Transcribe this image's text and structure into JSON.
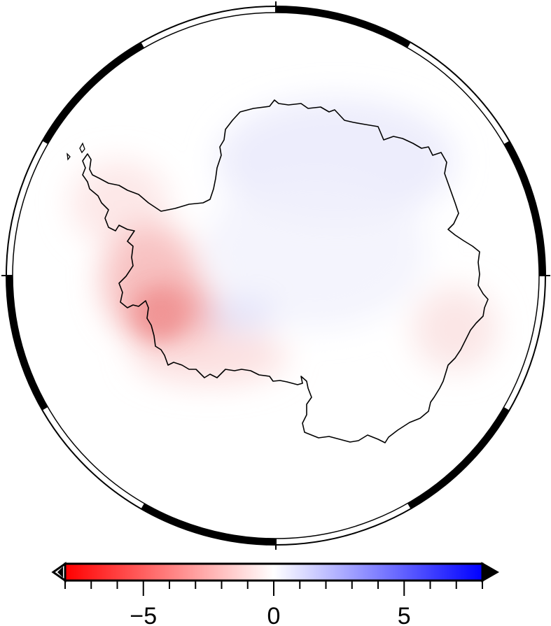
{
  "colorbar": {
    "min": -8,
    "max": 8,
    "major_tick_values": [
      -5,
      0,
      5
    ],
    "tick_labels": [
      "−5",
      "0",
      "5"
    ],
    "minor_tick_step": 1,
    "low_color": "#ff0000",
    "mid_color": "#ffffff",
    "high_color": "#0000ff",
    "extend": "both"
  },
  "colors": {
    "frame": "#000000",
    "coastline": "#000000",
    "background": "#ffffff"
  }
}
